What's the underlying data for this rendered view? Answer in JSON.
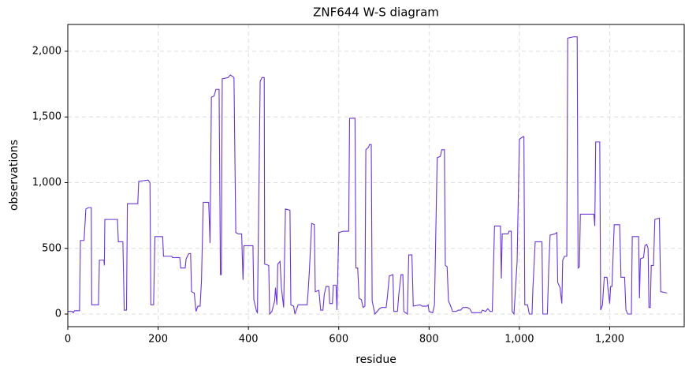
{
  "chart_data": {
    "type": "line",
    "title": "ZNF644 W-S diagram",
    "x_label": "residue",
    "y_label": "observations",
    "xlim": [
      0,
      1365
    ],
    "ylim": [
      -96,
      2204
    ],
    "xticks": [
      0,
      200,
      400,
      600,
      800,
      {
        "value": 1000,
        "label": "1,000"
      },
      {
        "value": 1200,
        "label": "1,200"
      }
    ],
    "yticks": [
      0,
      500,
      {
        "value": 1000,
        "label": "1,000"
      },
      {
        "value": 1500,
        "label": "1,500"
      },
      {
        "value": 2000,
        "label": "2,000"
      }
    ],
    "grid": true,
    "series": [
      {
        "color": "#6a35d4",
        "x": [
          0,
          10,
          12,
          15,
          26,
          28,
          36,
          40,
          46,
          52,
          53,
          68,
          70,
          80,
          81,
          82,
          110,
          112,
          122,
          125,
          130,
          132,
          155,
          157,
          178,
          182,
          184,
          190,
          193,
          210,
          212,
          230,
          232,
          248,
          250,
          260,
          262,
          268,
          272,
          274,
          280,
          284,
          288,
          293,
          296,
          300,
          312,
          315,
          318,
          324,
          328,
          335,
          338,
          340,
          342,
          355,
          360,
          368,
          372,
          378,
          385,
          388,
          390,
          410,
          412,
          418,
          420,
          426,
          430,
          435,
          436,
          445,
          447,
          452,
          458,
          460,
          463,
          465,
          470,
          473,
          478,
          482,
          492,
          494,
          500,
          503,
          510,
          530,
          532,
          535,
          540,
          546,
          548,
          556,
          560,
          565,
          568,
          572,
          578,
          580,
          586,
          588,
          594,
          596,
          600,
          610,
          622,
          624,
          636,
          638,
          642,
          645,
          650,
          654,
          658,
          660,
          666,
          668,
          672,
          674,
          680,
          690,
          695,
          705,
          708,
          712,
          720,
          722,
          730,
          733,
          738,
          742,
          744,
          752,
          755,
          762,
          765,
          780,
          785,
          795,
          798,
          800,
          808,
          812,
          818,
          825,
          828,
          834,
          836,
          840,
          843,
          848,
          852,
          860,
          865,
          870,
          875,
          885,
          890,
          895,
          915,
          918,
          925,
          930,
          935,
          940,
          945,
          958,
          960,
          962,
          975,
          977,
          982,
          984,
          988,
          995,
          1000,
          1008,
          1010,
          1012,
          1018,
          1022,
          1028,
          1030,
          1035,
          1050,
          1052,
          1062,
          1065,
          1068,
          1078,
          1083,
          1085,
          1090,
          1094,
          1096,
          1100,
          1105,
          1107,
          1120,
          1128,
          1130,
          1133,
          1135,
          1165,
          1167,
          1169,
          1178,
          1180,
          1184,
          1188,
          1194,
          1196,
          1200,
          1202,
          1205,
          1210,
          1222,
          1225,
          1233,
          1236,
          1240,
          1248,
          1250,
          1264,
          1266,
          1268,
          1275,
          1278,
          1282,
          1285,
          1287,
          1290,
          1292,
          1297,
          1300,
          1310,
          1313,
          1327
        ],
        "values": [
          20,
          20,
          10,
          25,
          25,
          560,
          560,
          800,
          810,
          810,
          70,
          70,
          410,
          410,
          370,
          720,
          720,
          550,
          550,
          30,
          30,
          840,
          840,
          1010,
          1020,
          1000,
          70,
          70,
          590,
          590,
          440,
          440,
          430,
          430,
          350,
          350,
          420,
          460,
          460,
          170,
          160,
          20,
          60,
          60,
          250,
          850,
          850,
          540,
          1650,
          1660,
          1710,
          1710,
          300,
          300,
          1790,
          1800,
          1820,
          1800,
          620,
          610,
          610,
          260,
          520,
          520,
          110,
          20,
          10,
          1770,
          1800,
          1800,
          380,
          370,
          0,
          20,
          100,
          200,
          70,
          380,
          400,
          200,
          50,
          800,
          790,
          70,
          60,
          0,
          70,
          70,
          160,
          330,
          690,
          680,
          170,
          180,
          30,
          30,
          150,
          210,
          210,
          80,
          80,
          220,
          220,
          30,
          620,
          630,
          630,
          1490,
          1490,
          350,
          350,
          120,
          110,
          50,
          60,
          1250,
          1270,
          1290,
          1290,
          100,
          0,
          40,
          50,
          50,
          140,
          290,
          300,
          20,
          20,
          150,
          300,
          300,
          20,
          0,
          450,
          450,
          60,
          70,
          60,
          60,
          70,
          20,
          10,
          70,
          1190,
          1200,
          1250,
          1250,
          370,
          360,
          100,
          60,
          20,
          20,
          30,
          30,
          50,
          50,
          40,
          10,
          10,
          30,
          20,
          40,
          20,
          20,
          670,
          670,
          270,
          610,
          610,
          630,
          630,
          20,
          0,
          400,
          1330,
          1350,
          1350,
          70,
          70,
          0,
          0,
          200,
          550,
          550,
          0,
          0,
          350,
          600,
          610,
          620,
          240,
          200,
          80,
          410,
          440,
          440,
          2100,
          2110,
          2110,
          350,
          360,
          760,
          760,
          670,
          1310,
          1310,
          30,
          70,
          280,
          280,
          200,
          80,
          210,
          210,
          680,
          680,
          280,
          280,
          30,
          0,
          0,
          590,
          590,
          120,
          420,
          430,
          520,
          530,
          500,
          50,
          50,
          370,
          370,
          720,
          730,
          170,
          160
        ]
      }
    ]
  }
}
